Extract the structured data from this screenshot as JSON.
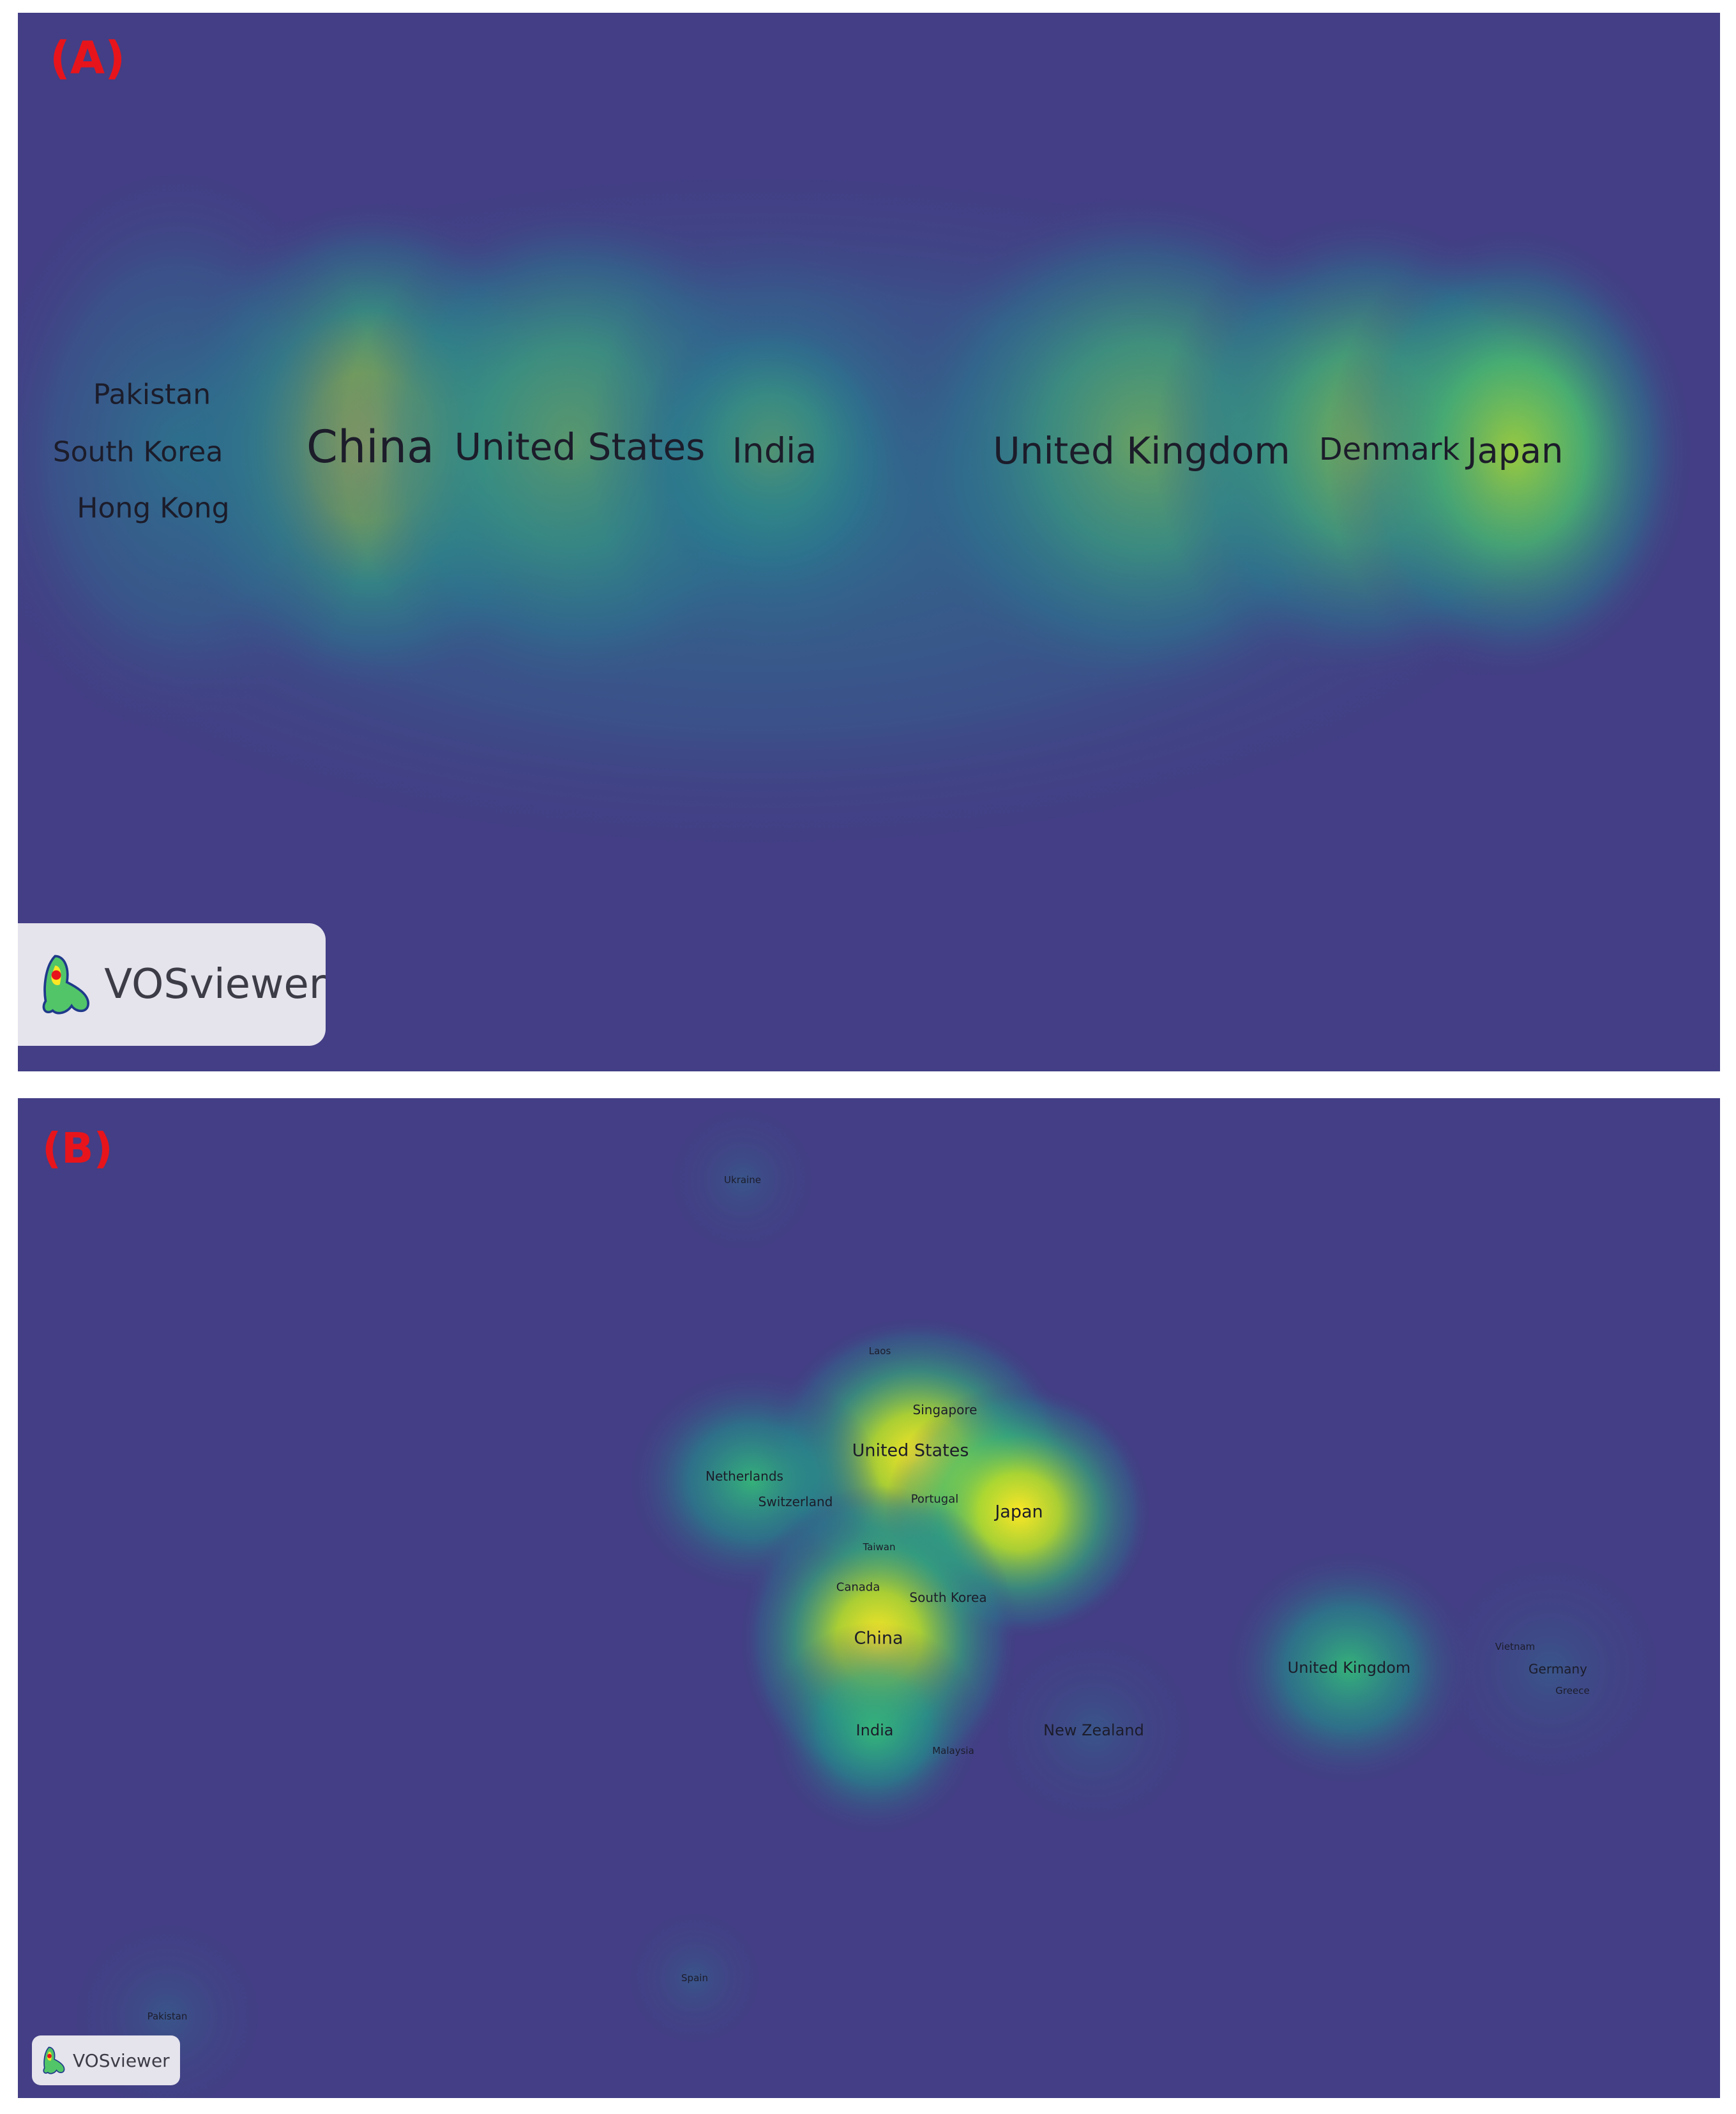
{
  "panel_a": {
    "label": "(A)",
    "logo_text": "VOSviewer",
    "terms": [
      {
        "name": "Pakistan",
        "size": 4,
        "density": 0.2
      },
      {
        "name": "South Korea",
        "size": 4,
        "density": 0.2
      },
      {
        "name": "Hong Kong",
        "size": 4,
        "density": 0.2
      },
      {
        "name": "China",
        "size": 7,
        "density": 1.0
      },
      {
        "name": "United States",
        "size": 5.5,
        "density": 0.8
      },
      {
        "name": "India",
        "size": 5,
        "density": 0.6
      },
      {
        "name": "United Kingdom",
        "size": 5.5,
        "density": 0.8
      },
      {
        "name": "Denmark",
        "size": 4.5,
        "density": 0.7
      },
      {
        "name": "Japan",
        "size": 5,
        "density": 0.65
      }
    ]
  },
  "panel_b": {
    "label": "(B)",
    "logo_text": "VOSviewer",
    "terms": [
      {
        "name": "Ukraine",
        "size": 1,
        "density": 0.1
      },
      {
        "name": "Laos",
        "size": 1,
        "density": 0.1
      },
      {
        "name": "Singapore",
        "size": 1.5,
        "density": 0.2
      },
      {
        "name": "United States",
        "size": 2.5,
        "density": 0.9
      },
      {
        "name": "Netherlands",
        "size": 1.5,
        "density": 0.3
      },
      {
        "name": "Switzerland",
        "size": 1.5,
        "density": 0.2
      },
      {
        "name": "Portugal",
        "size": 1.2,
        "density": 0.2
      },
      {
        "name": "Japan",
        "size": 2.5,
        "density": 0.8
      },
      {
        "name": "Taiwan",
        "size": 1,
        "density": 0.15
      },
      {
        "name": "Canada",
        "size": 1.2,
        "density": 0.2
      },
      {
        "name": "South Korea",
        "size": 1.5,
        "density": 0.3
      },
      {
        "name": "China",
        "size": 2.7,
        "density": 1.0
      },
      {
        "name": "United Kingdom",
        "size": 2,
        "density": 0.5
      },
      {
        "name": "Vietnam",
        "size": 1,
        "density": 0.15
      },
      {
        "name": "Germany",
        "size": 1.5,
        "density": 0.35
      },
      {
        "name": "Greece",
        "size": 1,
        "density": 0.2
      },
      {
        "name": "India",
        "size": 2,
        "density": 0.6
      },
      {
        "name": "Malaysia",
        "size": 1,
        "density": 0.2
      },
      {
        "name": "New Zealand",
        "size": 1.8,
        "density": 0.4
      },
      {
        "name": "Spain",
        "size": 1,
        "density": 0.1
      },
      {
        "name": "Pakistan",
        "size": 1,
        "density": 0.1
      }
    ]
  },
  "colors": {
    "background": "#433E85",
    "heat_stops": [
      "#433E85",
      "#2A788E",
      "#22A884",
      "#7AD151",
      "#FDE725"
    ],
    "label_color": "#E8141B"
  }
}
